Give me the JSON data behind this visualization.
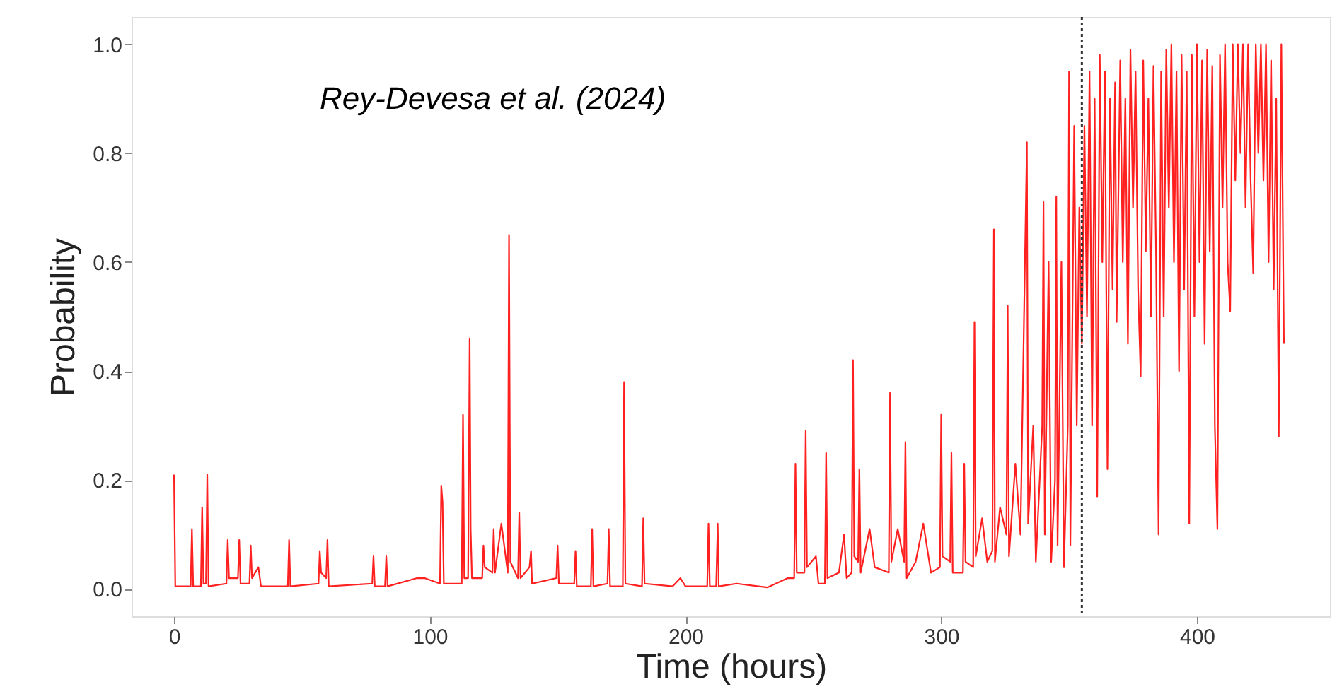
{
  "chart_data": {
    "type": "line",
    "xlabel": "Time (hours)",
    "ylabel": "Probability",
    "annotations": [
      "Rey-Devesa et al. (2024)"
    ],
    "xlim": [
      -16.6,
      452
    ],
    "xticks": [
      0,
      100,
      200,
      300,
      400
    ],
    "ylim": [
      -0.05,
      1.05
    ],
    "yticks": [
      {
        "value": 0,
        "label": "0.0"
      },
      0.2,
      0.4,
      0.6,
      0.8,
      {
        "value": 1,
        "label": "1.0"
      }
    ],
    "grid": false,
    "marker": "none",
    "line_style": "solid",
    "ref_lines": [
      {
        "axis": "x",
        "value": 355,
        "label": null,
        "color": "#333333",
        "line_style": "dotted"
      }
    ],
    "series": [
      {
        "color": "#ff2020",
        "x": [
          0,
          0.5,
          6.5,
          7,
          7.5,
          10.5,
          11,
          11.5,
          12.5,
          13,
          13.5,
          20.5,
          21,
          21.5,
          25,
          25.5,
          26,
          29.5,
          30,
          30.5,
          33,
          34,
          44.5,
          45,
          45.5,
          56.5,
          57,
          57.5,
          59.5,
          60,
          60.5,
          77.5,
          78,
          78.5,
          82.5,
          83,
          83.5,
          95,
          98,
          104,
          104.5,
          105,
          105.5,
          112.5,
          113,
          113.5,
          115,
          115.6,
          116,
          116.5,
          120.5,
          121,
          121.5,
          124.5,
          125,
          125.5,
          128,
          130.5,
          131,
          131.5,
          134.5,
          135,
          135.5,
          139,
          139.6,
          140,
          149.5,
          150,
          150.5,
          156.5,
          157,
          157.5,
          163,
          163.5,
          164,
          169.5,
          170,
          170.5,
          175.5,
          176,
          176.5,
          183,
          183.5,
          184,
          195,
          198,
          200,
          208.5,
          209,
          209.5,
          212,
          212.6,
          213,
          220,
          232,
          240,
          242.5,
          243,
          243.5,
          246.5,
          247,
          247.5,
          251,
          252,
          254.5,
          255,
          255.5,
          260,
          262,
          263,
          265,
          265.5,
          266,
          267.5,
          268,
          268.5,
          272,
          274,
          279.5,
          280,
          280.5,
          283,
          285.5,
          286,
          286.5,
          290,
          293,
          296,
          299.5,
          300,
          300.5,
          303.5,
          304,
          304.5,
          308.5,
          309,
          309.5,
          312.5,
          313,
          313.5,
          316,
          318,
          320,
          320.6,
          321,
          323,
          325.5,
          326,
          326.5,
          329,
          331,
          333.5,
          334,
          336,
          337,
          339.5,
          340,
          340.5,
          342,
          343,
          344.5,
          345,
          345.5,
          347,
          348,
          349.5,
          350,
          350.5,
          352,
          353,
          354,
          355,
          356,
          357,
          358,
          359,
          360,
          361,
          362,
          363,
          364,
          365,
          366,
          367,
          368,
          368.6,
          370,
          371,
          372,
          373,
          374,
          375,
          376,
          377,
          378,
          379,
          380,
          381,
          382,
          383,
          384,
          385,
          386,
          387,
          388,
          389,
          390,
          391,
          392,
          393,
          394,
          395,
          396,
          397,
          398,
          399,
          400,
          401,
          402,
          403,
          404,
          405,
          406,
          407,
          408,
          409,
          410,
          411,
          412,
          413,
          414,
          415,
          416,
          417,
          418,
          419,
          420,
          421,
          422,
          423,
          424,
          425,
          426,
          427,
          428,
          429,
          430,
          431,
          432,
          433,
          434
        ],
        "values": [
          0.21,
          0.005,
          0.005,
          0.11,
          0.005,
          0.005,
          0.15,
          0.01,
          0.01,
          0.21,
          0.005,
          0.01,
          0.09,
          0.02,
          0.02,
          0.09,
          0.01,
          0.01,
          0.08,
          0.02,
          0.04,
          0.005,
          0.005,
          0.09,
          0.005,
          0.01,
          0.07,
          0.03,
          0.02,
          0.09,
          0.005,
          0.01,
          0.06,
          0.005,
          0.005,
          0.06,
          0.005,
          0.02,
          0.02,
          0.01,
          0.19,
          0.16,
          0.01,
          0.01,
          0.32,
          0.02,
          0.02,
          0.46,
          0.11,
          0.02,
          0.02,
          0.08,
          0.04,
          0.03,
          0.11,
          0.03,
          0.12,
          0.03,
          0.65,
          0.05,
          0.02,
          0.14,
          0.02,
          0.04,
          0.07,
          0.01,
          0.02,
          0.08,
          0.01,
          0.01,
          0.07,
          0.005,
          0.005,
          0.11,
          0.005,
          0.01,
          0.11,
          0.005,
          0.005,
          0.38,
          0.01,
          0.005,
          0.13,
          0.01,
          0.005,
          0.02,
          0.005,
          0.005,
          0.12,
          0.005,
          0.005,
          0.12,
          0.005,
          0.01,
          0.003,
          0.02,
          0.02,
          0.23,
          0.03,
          0.03,
          0.29,
          0.04,
          0.06,
          0.01,
          0.01,
          0.25,
          0.02,
          0.03,
          0.1,
          0.02,
          0.03,
          0.42,
          0.06,
          0.05,
          0.22,
          0.03,
          0.11,
          0.04,
          0.03,
          0.36,
          0.05,
          0.11,
          0.05,
          0.27,
          0.02,
          0.05,
          0.12,
          0.03,
          0.04,
          0.32,
          0.06,
          0.05,
          0.25,
          0.03,
          0.03,
          0.23,
          0.05,
          0.04,
          0.49,
          0.06,
          0.13,
          0.05,
          0.07,
          0.66,
          0.05,
          0.15,
          0.1,
          0.52,
          0.06,
          0.23,
          0.1,
          0.82,
          0.12,
          0.3,
          0.05,
          0.3,
          0.71,
          0.1,
          0.6,
          0.05,
          0.2,
          0.72,
          0.08,
          0.6,
          0.04,
          0.3,
          0.95,
          0.08,
          0.85,
          0.3,
          0.7,
          0.45,
          0.85,
          0.5,
          0.95,
          0.3,
          0.9,
          0.17,
          0.98,
          0.6,
          0.95,
          0.22,
          0.9,
          0.55,
          0.93,
          0.49,
          0.97,
          0.6,
          0.9,
          0.45,
          0.99,
          0.7,
          0.95,
          0.55,
          0.39,
          0.97,
          0.62,
          0.9,
          0.5,
          0.96,
          0.62,
          0.1,
          0.95,
          0.5,
          0.99,
          0.7,
          1.0,
          0.6,
          0.95,
          0.4,
          0.98,
          0.55,
          0.95,
          0.12,
          0.98,
          0.5,
          1.0,
          0.6,
          0.97,
          0.45,
          0.99,
          0.62,
          0.96,
          0.3,
          0.11,
          0.98,
          0.7,
          1.0,
          0.6,
          0.51,
          1.0,
          0.75,
          1.0,
          0.8,
          1.0,
          0.7,
          1.0,
          0.75,
          0.58,
          1.0,
          0.8,
          1.0,
          0.75,
          1.0,
          0.6,
          0.97,
          0.55,
          0.9,
          0.28,
          1.0,
          0.45
        ]
      }
    ]
  }
}
